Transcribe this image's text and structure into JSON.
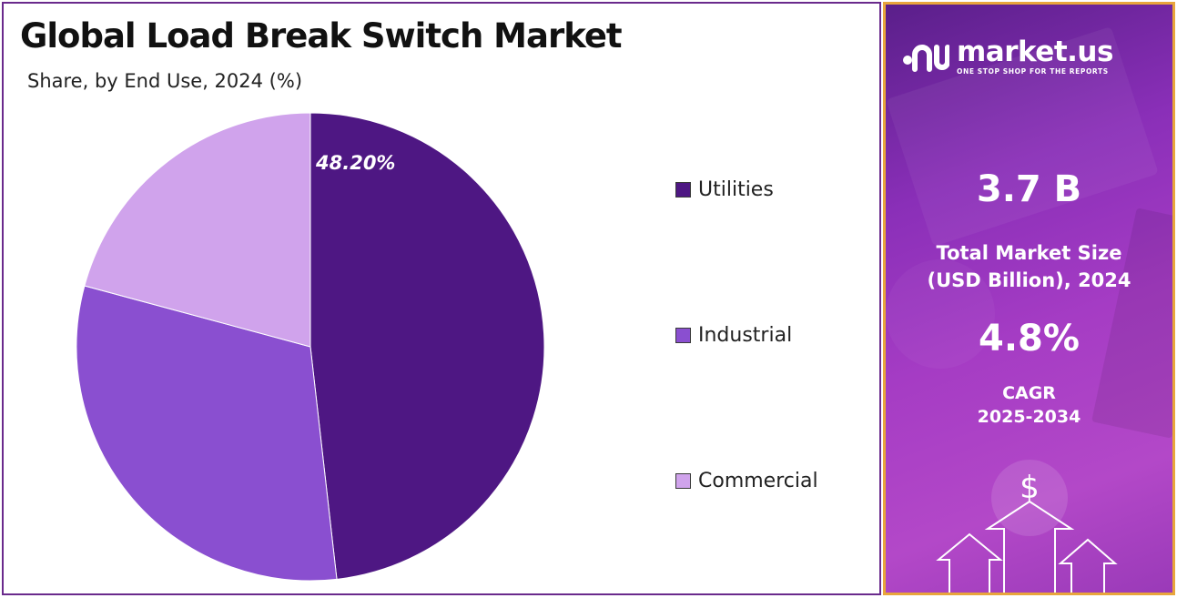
{
  "chart_data": {
    "type": "pie",
    "title": "Global Load Break Switch Market",
    "subtitle": "Share, by End Use, 2024 (%)",
    "categories": [
      "Utilities",
      "Industrial",
      "Commercial"
    ],
    "values": [
      48.2,
      31.0,
      20.8
    ],
    "data_labels": [
      "48.20%",
      "",
      ""
    ],
    "colors": [
      "#4e1783",
      "#8a4fd0",
      "#d0a3ec"
    ],
    "legend_position": "right"
  },
  "legend": {
    "items": [
      {
        "label": "Utilities",
        "color": "#4e1783"
      },
      {
        "label": "Industrial",
        "color": "#8a4fd0"
      },
      {
        "label": "Commercial",
        "color": "#d0a3ec"
      }
    ]
  },
  "sidebar": {
    "brand_name": "market.us",
    "brand_tagline": "ONE STOP SHOP FOR THE REPORTS",
    "market_size_value": "3.7 B",
    "market_size_label_1": "Total Market Size",
    "market_size_label_2": "(USD Billion), 2024",
    "cagr_value": "4.8%",
    "cagr_label_1": "CAGR",
    "cagr_label_2": "2025-2034",
    "dollar_symbol": "$",
    "icons": [
      "market-us-logo-icon",
      "dollar-icon",
      "up-arrow-icon"
    ],
    "border_color": "#e8a53c",
    "background_color": "#9a3ab8"
  }
}
